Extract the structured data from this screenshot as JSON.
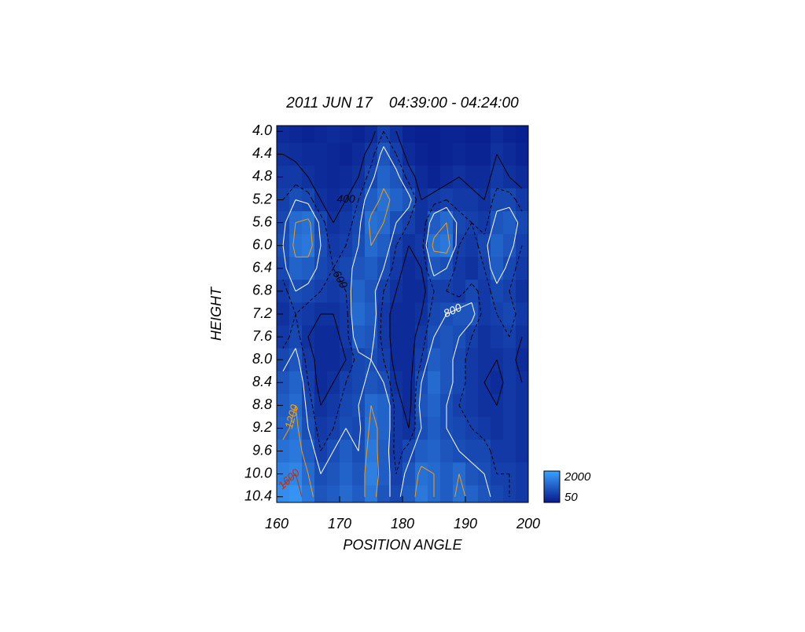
{
  "chart_data": {
    "type": "heatmap",
    "title": "2011 JUN 17    04:39:00 - 04:24:00",
    "x_label": "POSITION ANGLE",
    "y_label": "HEIGHT",
    "x": [
      161,
      163,
      165,
      167,
      169,
      171,
      173,
      175,
      177,
      179,
      181,
      183,
      185,
      187,
      189,
      191,
      193,
      195,
      197,
      199
    ],
    "y": [
      4.0,
      4.4,
      4.8,
      5.2,
      5.6,
      6.0,
      6.4,
      6.8,
      7.2,
      7.6,
      8.0,
      8.4,
      8.8,
      9.2,
      9.6,
      10.0,
      10.4
    ],
    "values": [
      [
        300,
        250,
        200,
        250,
        300,
        250,
        200,
        300,
        600,
        400,
        200,
        150,
        150,
        200,
        200,
        150,
        150,
        300,
        200,
        150
      ],
      [
        400,
        350,
        300,
        300,
        250,
        200,
        300,
        500,
        900,
        600,
        300,
        200,
        150,
        200,
        250,
        200,
        200,
        400,
        300,
        200
      ],
      [
        500,
        500,
        400,
        300,
        250,
        300,
        400,
        700,
        1100,
        900,
        500,
        300,
        200,
        300,
        400,
        300,
        300,
        500,
        400,
        300
      ],
      [
        600,
        800,
        700,
        400,
        300,
        400,
        600,
        1000,
        1300,
        1100,
        900,
        400,
        500,
        600,
        500,
        500,
        400,
        700,
        700,
        500
      ],
      [
        700,
        1200,
        1300,
        700,
        400,
        500,
        700,
        1300,
        1200,
        800,
        600,
        400,
        1000,
        1200,
        700,
        600,
        500,
        900,
        1000,
        700
      ],
      [
        800,
        1300,
        1400,
        800,
        500,
        600,
        800,
        1200,
        1000,
        600,
        400,
        500,
        1300,
        1400,
        600,
        500,
        700,
        1100,
        900,
        600
      ],
      [
        700,
        1100,
        1000,
        700,
        600,
        700,
        900,
        1000,
        800,
        500,
        300,
        400,
        900,
        800,
        500,
        400,
        600,
        1000,
        700,
        500
      ],
      [
        500,
        800,
        700,
        600,
        500,
        600,
        1100,
        900,
        600,
        400,
        300,
        300,
        600,
        600,
        500,
        700,
        500,
        700,
        600,
        400
      ],
      [
        400,
        600,
        500,
        400,
        400,
        500,
        1200,
        1000,
        500,
        300,
        300,
        400,
        700,
        800,
        900,
        900,
        500,
        600,
        700,
        500
      ],
      [
        500,
        700,
        400,
        300,
        300,
        500,
        1000,
        900,
        500,
        300,
        300,
        500,
        800,
        900,
        800,
        600,
        400,
        500,
        600,
        400
      ],
      [
        700,
        900,
        500,
        300,
        300,
        400,
        700,
        800,
        600,
        300,
        300,
        600,
        1000,
        900,
        700,
        500,
        400,
        400,
        500,
        300
      ],
      [
        900,
        1100,
        600,
        300,
        400,
        600,
        700,
        900,
        800,
        400,
        300,
        800,
        1200,
        900,
        700,
        500,
        400,
        300,
        500,
        400
      ],
      [
        1000,
        1200,
        700,
        400,
        500,
        700,
        800,
        1200,
        1100,
        500,
        300,
        900,
        1100,
        800,
        600,
        500,
        400,
        400,
        500,
        400
      ],
      [
        1100,
        1300,
        800,
        500,
        600,
        800,
        700,
        1300,
        1100,
        500,
        400,
        800,
        1000,
        800,
        700,
        600,
        500,
        400,
        500,
        400
      ],
      [
        1300,
        1400,
        1000,
        600,
        800,
        1000,
        800,
        1400,
        1000,
        500,
        700,
        1000,
        1100,
        900,
        800,
        700,
        700,
        500,
        500,
        400
      ],
      [
        1500,
        1600,
        1200,
        800,
        900,
        1100,
        900,
        1500,
        1000,
        600,
        900,
        1300,
        1200,
        1000,
        1200,
        900,
        800,
        600,
        600,
        500
      ],
      [
        1700,
        1800,
        1400,
        900,
        1000,
        1200,
        1000,
        1400,
        900,
        700,
        1000,
        1400,
        1200,
        1000,
        1300,
        1100,
        900,
        700,
        600,
        500
      ]
    ],
    "xlim": [
      160,
      200
    ],
    "xticks": [
      160,
      170,
      180,
      190,
      200
    ],
    "ylim": [
      3.9,
      10.5
    ],
    "y_reversed": true,
    "yticks": [
      {
        "value": 4.0,
        "label": "4.0"
      },
      {
        "value": 4.4,
        "label": "4.4"
      },
      {
        "value": 4.8,
        "label": "4.8"
      },
      {
        "value": 5.2,
        "label": "5.2"
      },
      {
        "value": 5.6,
        "label": "5.6"
      },
      {
        "value": 6.0,
        "label": "6.0"
      },
      {
        "value": 6.4,
        "label": "6.4"
      },
      {
        "value": 6.8,
        "label": "6.8"
      },
      {
        "value": 7.2,
        "label": "7.2"
      },
      {
        "value": 7.6,
        "label": "7.6"
      },
      {
        "value": 8.0,
        "label": "8.0"
      },
      {
        "value": 8.4,
        "label": "8.4"
      },
      {
        "value": 8.8,
        "label": "8.8"
      },
      {
        "value": 9.2,
        "label": "9.2"
      },
      {
        "value": 9.6,
        "label": "9.6"
      },
      {
        "value": 10.0,
        "label": "10.0"
      },
      {
        "value": 10.4,
        "label": "10.4"
      }
    ],
    "colormap": [
      "#061a8a",
      "#3aa2ff"
    ],
    "colorbar": {
      "min": 50,
      "max": 2000
    },
    "contours": [
      {
        "level": 400,
        "color": "#000000"
      },
      {
        "level": 600,
        "color": "#000000"
      },
      {
        "level": 800,
        "color": "#ffffff"
      },
      {
        "level": 1200,
        "color": "#ff9a00"
      },
      {
        "level": 1600,
        "color": "#c83000"
      }
    ]
  }
}
